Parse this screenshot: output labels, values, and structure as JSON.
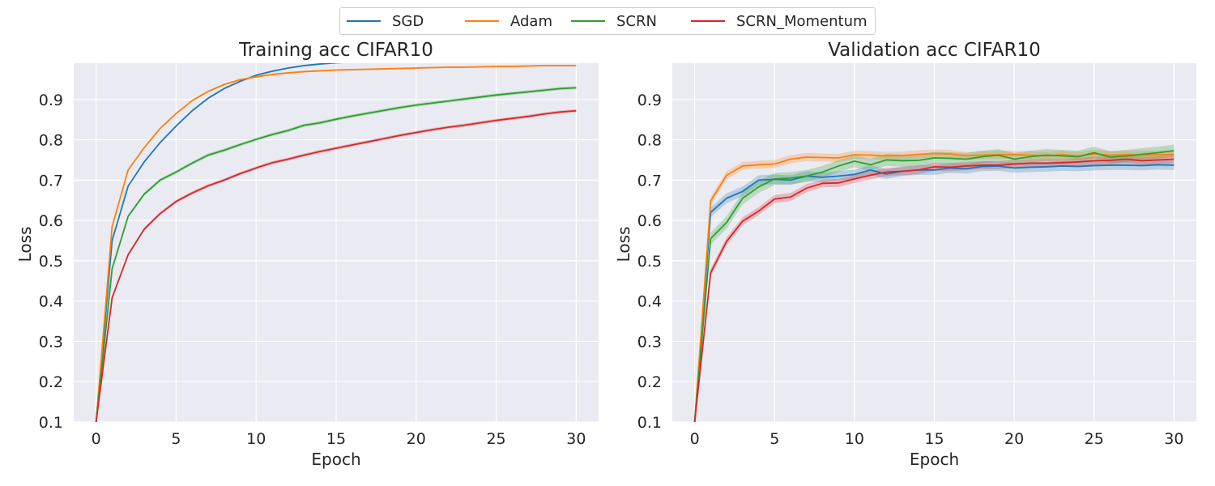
{
  "legend": {
    "items": [
      {
        "name": "SGD",
        "color": "#1f77b4"
      },
      {
        "name": "Adam",
        "color": "#ff7f0e"
      },
      {
        "name": "SCRN",
        "color": "#2ca02c"
      },
      {
        "name": "SCRN_Momentum",
        "color": "#d62728"
      }
    ]
  },
  "chart_data": [
    {
      "type": "line",
      "title": "Training acc CIFAR10",
      "xlabel": "Epoch",
      "ylabel": "Loss",
      "xlim": [
        -1.4,
        31.4
      ],
      "ylim": [
        0.1,
        0.99
      ],
      "xticks": [
        0,
        5,
        10,
        15,
        20,
        25,
        30
      ],
      "yticks": [
        0.1,
        0.2,
        0.3,
        0.4,
        0.5,
        0.6,
        0.7,
        0.8,
        0.9
      ],
      "grid": true,
      "x": [
        0,
        1,
        2,
        3,
        4,
        5,
        6,
        7,
        8,
        9,
        10,
        11,
        12,
        13,
        14,
        15,
        16,
        17,
        18,
        19,
        20,
        21,
        22,
        23,
        24,
        25,
        26,
        27,
        28,
        29,
        30
      ],
      "series": [
        {
          "name": "SGD",
          "color": "#1f77b4",
          "band": 0.002,
          "values": [
            0.1,
            0.55,
            0.685,
            0.745,
            0.793,
            0.834,
            0.872,
            0.903,
            0.927,
            0.945,
            0.96,
            0.97,
            0.978,
            0.984,
            0.988,
            0.991,
            0.993,
            0.995,
            0.996,
            0.997,
            0.998,
            0.998,
            0.999,
            0.999,
            0.999,
            0.999,
            0.999,
            0.999,
            0.999,
            0.999,
            0.999
          ]
        },
        {
          "name": "Adam",
          "color": "#ff7f0e",
          "band": 0.002,
          "values": [
            0.1,
            0.585,
            0.725,
            0.78,
            0.828,
            0.865,
            0.897,
            0.92,
            0.937,
            0.949,
            0.956,
            0.962,
            0.966,
            0.969,
            0.971,
            0.973,
            0.974,
            0.975,
            0.976,
            0.977,
            0.978,
            0.979,
            0.98,
            0.98,
            0.981,
            0.982,
            0.982,
            0.983,
            0.984,
            0.984,
            0.984
          ]
        },
        {
          "name": "SCRN",
          "color": "#2ca02c",
          "band": 0.004,
          "values": [
            0.1,
            0.48,
            0.61,
            0.665,
            0.7,
            0.72,
            0.742,
            0.762,
            0.774,
            0.788,
            0.801,
            0.813,
            0.823,
            0.836,
            0.842,
            0.851,
            0.859,
            0.866,
            0.873,
            0.88,
            0.886,
            0.891,
            0.896,
            0.901,
            0.906,
            0.911,
            0.915,
            0.919,
            0.923,
            0.927,
            0.929
          ]
        },
        {
          "name": "SCRN_Momentum",
          "color": "#d62728",
          "band": 0.004,
          "values": [
            0.1,
            0.408,
            0.515,
            0.578,
            0.617,
            0.647,
            0.668,
            0.686,
            0.7,
            0.716,
            0.73,
            0.743,
            0.752,
            0.762,
            0.771,
            0.779,
            0.787,
            0.795,
            0.803,
            0.811,
            0.818,
            0.825,
            0.831,
            0.836,
            0.842,
            0.848,
            0.853,
            0.858,
            0.864,
            0.869,
            0.872
          ]
        }
      ]
    },
    {
      "type": "line",
      "title": "Validation acc CIFAR10",
      "xlabel": "Epoch",
      "ylabel": "Loss",
      "xlim": [
        -1.4,
        31.4
      ],
      "ylim": [
        0.1,
        0.99
      ],
      "xticks": [
        0,
        5,
        10,
        15,
        20,
        25,
        30
      ],
      "yticks": [
        0.1,
        0.2,
        0.3,
        0.4,
        0.5,
        0.6,
        0.7,
        0.8,
        0.9
      ],
      "grid": true,
      "x": [
        0,
        1,
        2,
        3,
        4,
        5,
        6,
        7,
        8,
        9,
        10,
        11,
        12,
        13,
        14,
        15,
        16,
        17,
        18,
        19,
        20,
        21,
        22,
        23,
        24,
        25,
        26,
        27,
        28,
        29,
        30
      ],
      "series": [
        {
          "name": "SGD",
          "color": "#1f77b4",
          "band": 0.012,
          "values": [
            0.1,
            0.62,
            0.655,
            0.672,
            0.7,
            0.702,
            0.7,
            0.71,
            0.707,
            0.71,
            0.714,
            0.725,
            0.715,
            0.722,
            0.725,
            0.725,
            0.73,
            0.728,
            0.734,
            0.735,
            0.73,
            0.732,
            0.733,
            0.735,
            0.734,
            0.736,
            0.737,
            0.737,
            0.736,
            0.738,
            0.737
          ]
        },
        {
          "name": "Adam",
          "color": "#ff7f0e",
          "band": 0.01,
          "values": [
            0.1,
            0.648,
            0.712,
            0.735,
            0.738,
            0.74,
            0.752,
            0.757,
            0.756,
            0.755,
            0.763,
            0.762,
            0.76,
            0.761,
            0.764,
            0.766,
            0.765,
            0.76,
            0.762,
            0.763,
            0.763,
            0.762,
            0.76,
            0.763,
            0.76,
            0.765,
            0.762,
            0.763,
            0.762,
            0.763,
            0.764
          ]
        },
        {
          "name": "SCRN",
          "color": "#2ca02c",
          "band": 0.015,
          "values": [
            0.1,
            0.555,
            0.595,
            0.655,
            0.683,
            0.703,
            0.705,
            0.71,
            0.72,
            0.735,
            0.747,
            0.738,
            0.75,
            0.748,
            0.749,
            0.755,
            0.754,
            0.752,
            0.758,
            0.762,
            0.752,
            0.758,
            0.762,
            0.76,
            0.758,
            0.768,
            0.757,
            0.76,
            0.764,
            0.768,
            0.773
          ]
        },
        {
          "name": "SCRN_Momentum",
          "color": "#d62728",
          "band": 0.01,
          "values": [
            0.1,
            0.47,
            0.548,
            0.598,
            0.623,
            0.653,
            0.658,
            0.68,
            0.692,
            0.693,
            0.703,
            0.712,
            0.72,
            0.722,
            0.725,
            0.733,
            0.732,
            0.735,
            0.737,
            0.737,
            0.74,
            0.742,
            0.742,
            0.743,
            0.745,
            0.748,
            0.749,
            0.752,
            0.748,
            0.75,
            0.752
          ]
        }
      ]
    }
  ]
}
